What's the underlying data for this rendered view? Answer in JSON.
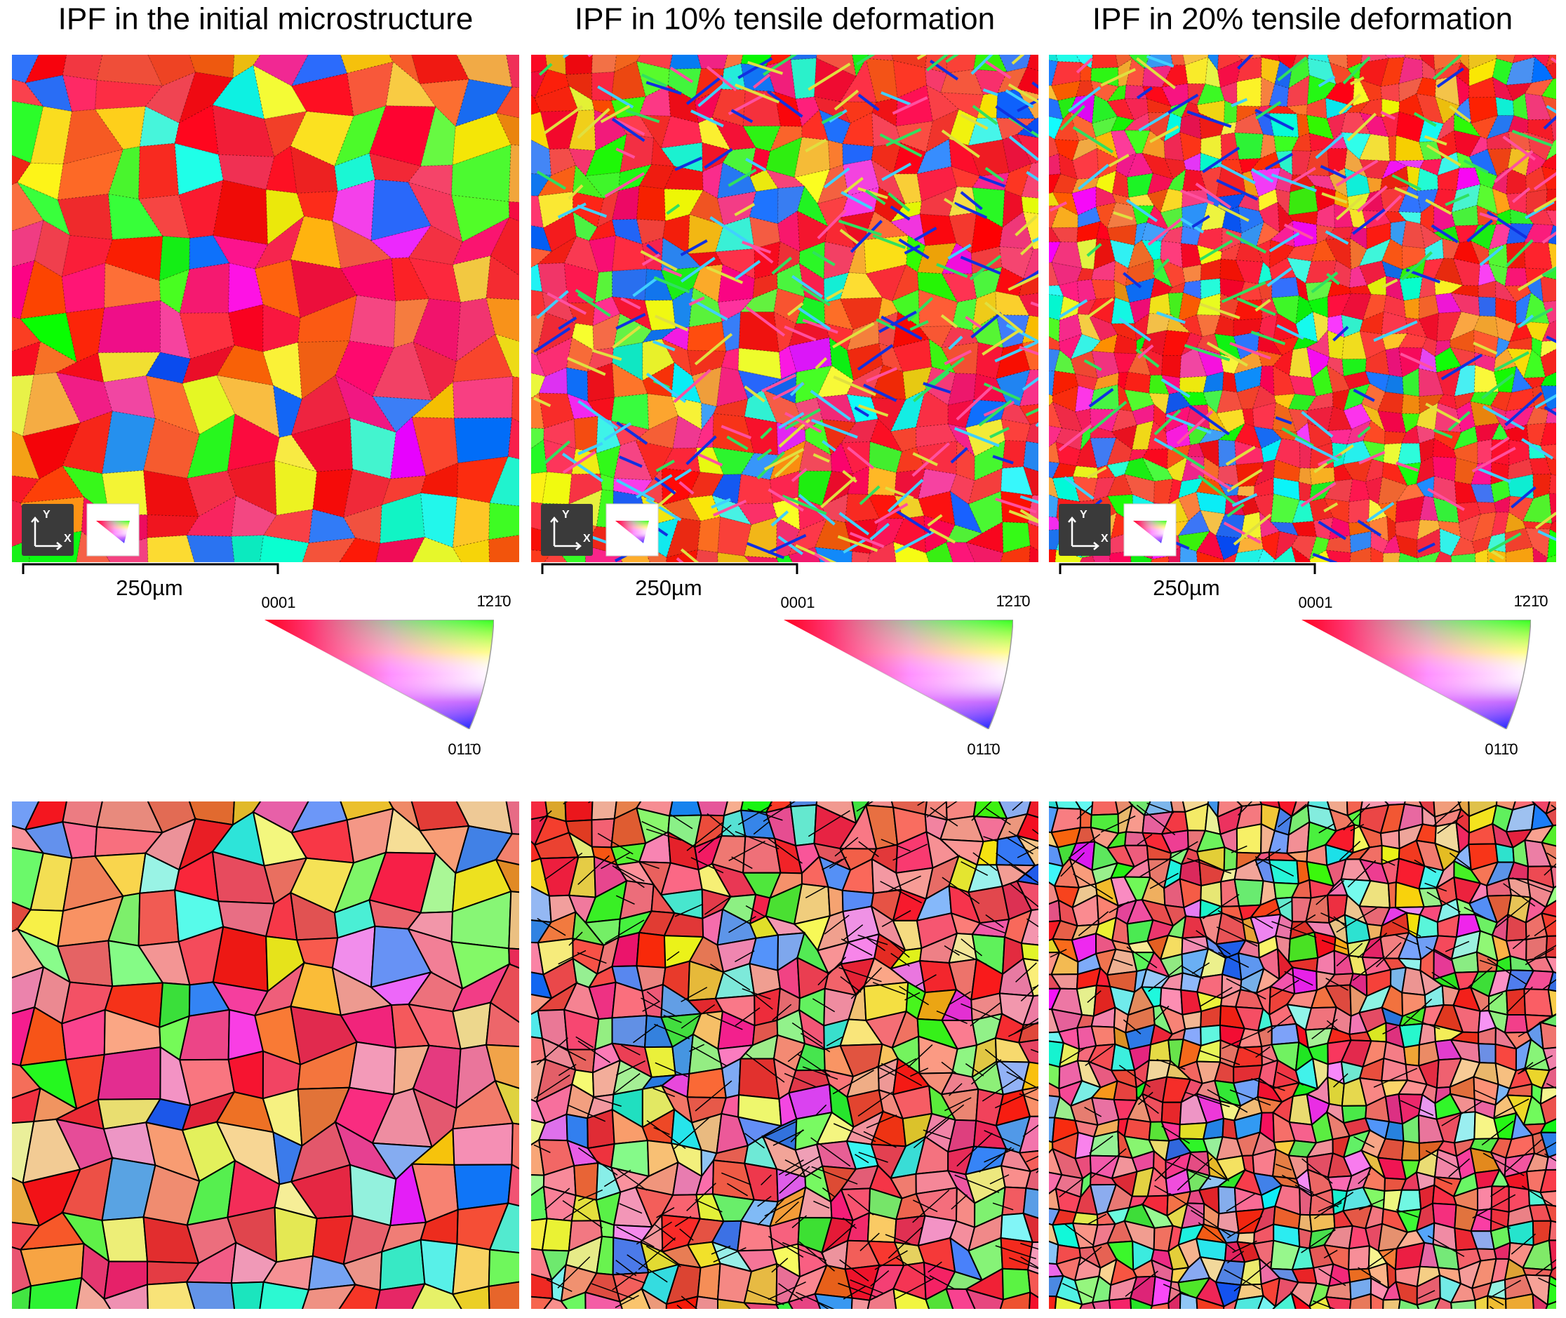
{
  "panels": [
    {
      "title": "IPF in the initial microstructure",
      "scale_bar": "250µm",
      "axes": {
        "y": "Y",
        "x": "X"
      },
      "legend": {
        "corner_0001": "0001",
        "corner_1210": "1̄21̄0",
        "corner_0110": "011̄0"
      }
    },
    {
      "title": "IPF in 10% tensile deformation",
      "scale_bar": "250µm",
      "axes": {
        "y": "Y",
        "x": "X"
      },
      "legend": {
        "corner_0001": "0001",
        "corner_1210": "1̄21̄0",
        "corner_0110": "011̄0"
      }
    },
    {
      "title": "IPF in 20% tensile deformation",
      "scale_bar": "250µm",
      "axes": {
        "y": "Y",
        "x": "X"
      },
      "legend": {
        "corner_0001": "0001",
        "corner_1210": "1̄21̄0",
        "corner_0110": "011̄0"
      }
    }
  ]
}
